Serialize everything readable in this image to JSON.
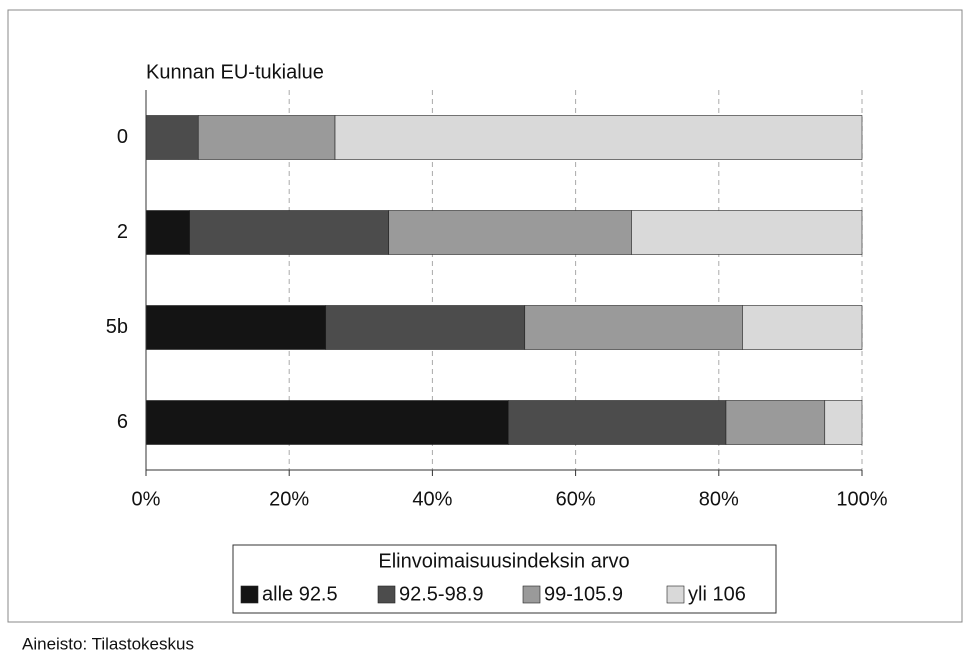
{
  "chart_data": {
    "type": "bar",
    "orientation": "horizontal",
    "stacked": true,
    "y_label": "Kunnan EU-tukialue",
    "categories": [
      "0",
      "2",
      "5b",
      "6"
    ],
    "series": [
      {
        "name": "alle 92.5",
        "color": "#141414",
        "values": [
          0,
          6.1,
          25.1,
          50.6
        ]
      },
      {
        "name": "92.5-98.9",
        "color": "#4c4c4c",
        "values": [
          7.3,
          27.8,
          27.8,
          30.4
        ]
      },
      {
        "name": "99-105.9",
        "color": "#9a9a9a",
        "values": [
          19.1,
          33.9,
          30.4,
          13.8
        ]
      },
      {
        "name": "yli 106",
        "color": "#d9d9d9",
        "values": [
          73.6,
          32.2,
          16.7,
          5.2
        ]
      }
    ],
    "xlim": [
      0,
      100
    ],
    "xticks": [
      {
        "value": 0,
        "label": "0%"
      },
      {
        "value": 20,
        "label": "20%"
      },
      {
        "value": 40,
        "label": "40%"
      },
      {
        "value": 60,
        "label": "60%"
      },
      {
        "value": 80,
        "label": "80%"
      },
      {
        "value": 100,
        "label": "100%"
      }
    ],
    "grid": true,
    "legend_title": "Elinvoimaisuusindeksin arvo",
    "legend_position": "bottom",
    "source": "Aineisto: Tilastokeskus"
  }
}
